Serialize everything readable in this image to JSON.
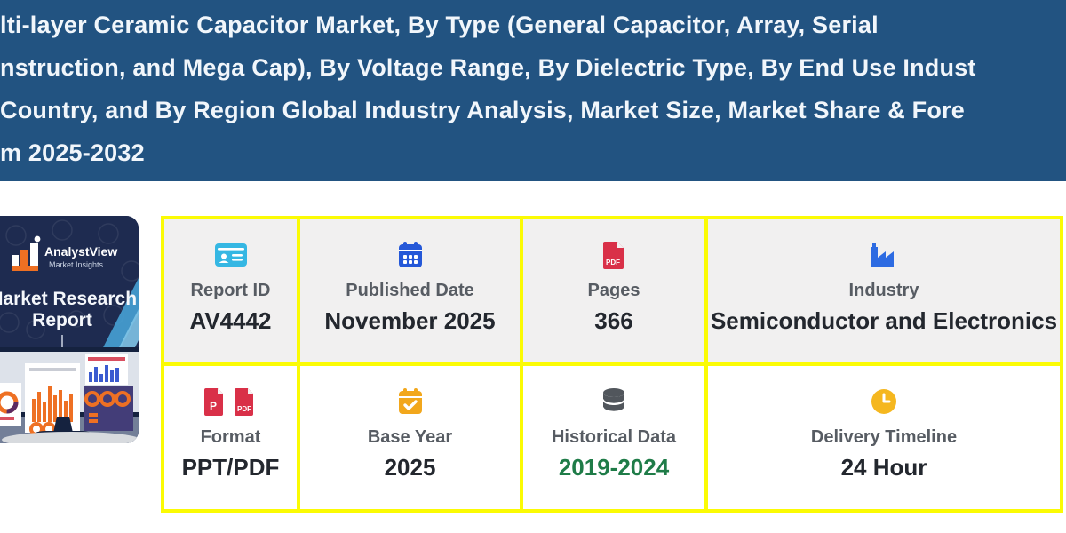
{
  "header": {
    "title_lines": [
      "lti-layer Ceramic Capacitor Market, By Type (General Capacitor, Array, Serial",
      "nstruction, and Mega Cap), By Voltage Range, By Dielectric Type, By End Use Indust",
      "Country, and By Region Global Industry Analysis, Market Size, Market Share & Fore",
      "m 2025-2032"
    ],
    "bg_color": "#225381"
  },
  "thumbnail": {
    "brand": "AnalystView",
    "brand_sub": "Market Insights",
    "caption_line1": "Market Research",
    "caption_line2": "Report"
  },
  "details": {
    "cells": [
      {
        "icon": "id-card",
        "label": "Report ID",
        "value": "AV4442"
      },
      {
        "icon": "calendar",
        "label": "Published Date",
        "value": "November 2025"
      },
      {
        "icon": "file-pdf",
        "label": "Pages",
        "value": "366"
      },
      {
        "icon": "factory",
        "label": "Industry",
        "value": "Semiconductor and Electronics"
      },
      {
        "icon": "file-ppt-pdf",
        "label": "Format",
        "value": "PPT/PDF"
      },
      {
        "icon": "calendar-check",
        "label": "Base Year",
        "value": "2025"
      },
      {
        "icon": "database",
        "label": "Historical Data",
        "value": "2019-2024",
        "value_color": "#1f7c48"
      },
      {
        "icon": "clock",
        "label": "Delivery Timeline",
        "value": "24 Hour"
      }
    ]
  },
  "colors": {
    "header_bg": "#225381",
    "border_yellow": "#fbfb04",
    "row1_bg": "#f1f0f0",
    "row2_bg": "#ffffff",
    "label_gray": "#575c63",
    "value_dark": "#23272e",
    "value_green": "#1f7c48",
    "icon_cyan": "#35b7e3",
    "icon_blue": "#2558d8",
    "icon_red": "#d93048",
    "icon_amber": "#f2a71c",
    "icon_gray": "#51565c",
    "thumb_navy": "#1e2b50",
    "thumb_orange": "#ee7023"
  }
}
